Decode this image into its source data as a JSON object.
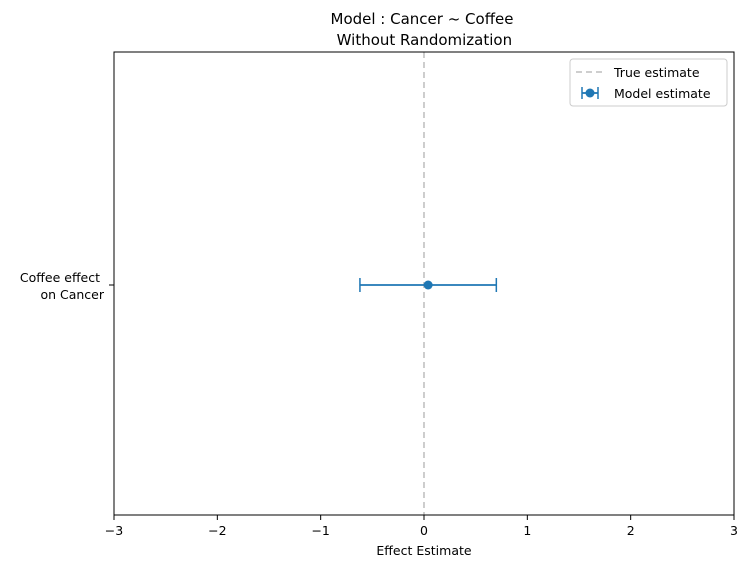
{
  "chart_data": {
    "type": "scatter",
    "title_line1": "Model : Cancer ~ Coffee",
    "title_line2": " Without Randomization",
    "xlabel": "Effect Estimate",
    "ylabel": "",
    "xlim": [
      -3,
      3
    ],
    "x_ticks": [
      -3,
      -2,
      -1,
      0,
      1,
      2,
      3
    ],
    "x_tick_labels": [
      "−3",
      "−2",
      "−1",
      "0",
      "1",
      "2",
      "3"
    ],
    "y_category_line1": "Coffee effect ",
    "y_category_line2": "on Cancer",
    "grid": false,
    "legend_placement": "top-right",
    "true_estimate": {
      "name": "True estimate",
      "x": 0,
      "color": "#c8c8c8",
      "style": "dashed"
    },
    "model_estimate": {
      "name": "Model estimate",
      "x": 0.04,
      "ci_low": -0.62,
      "ci_high": 0.7,
      "color": "#1f77b4"
    }
  }
}
